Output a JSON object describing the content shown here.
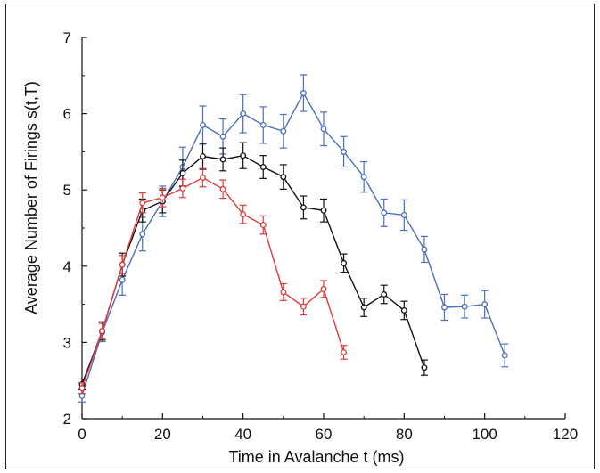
{
  "chart_data": {
    "type": "line",
    "title": "",
    "xlabel": "Time in Avalanche t (ms)",
    "ylabel": "Average Number of Firings s(t,T)",
    "xlim": [
      0,
      120
    ],
    "ylim": [
      2,
      7
    ],
    "xticks": [
      0,
      20,
      40,
      60,
      80,
      100,
      120
    ],
    "yticks": [
      2,
      3,
      4,
      5,
      6,
      7
    ],
    "grid": false,
    "legend": "none",
    "series": [
      {
        "color": "#4a6fbf",
        "marker": "open-circle",
        "points": [
          {
            "x": 0,
            "y": 2.3,
            "err": 0.08
          },
          {
            "x": 5,
            "y": 3.13,
            "err": 0.12
          },
          {
            "x": 10,
            "y": 3.82,
            "err": 0.2
          },
          {
            "x": 15,
            "y": 4.42,
            "err": 0.22
          },
          {
            "x": 20,
            "y": 4.85,
            "err": 0.2
          },
          {
            "x": 25,
            "y": 5.3,
            "err": 0.26
          },
          {
            "x": 30,
            "y": 5.85,
            "err": 0.25
          },
          {
            "x": 35,
            "y": 5.7,
            "err": 0.23
          },
          {
            "x": 40,
            "y": 6.0,
            "err": 0.25
          },
          {
            "x": 45,
            "y": 5.85,
            "err": 0.24
          },
          {
            "x": 50,
            "y": 5.77,
            "err": 0.22
          },
          {
            "x": 55,
            "y": 6.27,
            "err": 0.24
          },
          {
            "x": 60,
            "y": 5.8,
            "err": 0.22
          },
          {
            "x": 65,
            "y": 5.5,
            "err": 0.2
          },
          {
            "x": 70,
            "y": 5.17,
            "err": 0.2
          },
          {
            "x": 75,
            "y": 4.7,
            "err": 0.18
          },
          {
            "x": 80,
            "y": 4.67,
            "err": 0.2
          },
          {
            "x": 85,
            "y": 4.22,
            "err": 0.17
          },
          {
            "x": 90,
            "y": 3.46,
            "err": 0.17
          },
          {
            "x": 95,
            "y": 3.47,
            "err": 0.15
          },
          {
            "x": 100,
            "y": 3.5,
            "err": 0.18
          },
          {
            "x": 105,
            "y": 2.83,
            "err": 0.15
          }
        ]
      },
      {
        "color": "#111111",
        "marker": "open-circle",
        "points": [
          {
            "x": 0,
            "y": 2.45,
            "err": 0.07
          },
          {
            "x": 5,
            "y": 3.15,
            "err": 0.12
          },
          {
            "x": 10,
            "y": 4.02,
            "err": 0.15
          },
          {
            "x": 15,
            "y": 4.73,
            "err": 0.15
          },
          {
            "x": 20,
            "y": 4.85,
            "err": 0.15
          },
          {
            "x": 25,
            "y": 5.22,
            "err": 0.17
          },
          {
            "x": 30,
            "y": 5.44,
            "err": 0.17
          },
          {
            "x": 35,
            "y": 5.4,
            "err": 0.15
          },
          {
            "x": 40,
            "y": 5.45,
            "err": 0.17
          },
          {
            "x": 45,
            "y": 5.3,
            "err": 0.15
          },
          {
            "x": 50,
            "y": 5.17,
            "err": 0.16
          },
          {
            "x": 55,
            "y": 4.77,
            "err": 0.15
          },
          {
            "x": 60,
            "y": 4.73,
            "err": 0.15
          },
          {
            "x": 65,
            "y": 4.04,
            "err": 0.12
          },
          {
            "x": 70,
            "y": 3.46,
            "err": 0.12
          },
          {
            "x": 75,
            "y": 3.63,
            "err": 0.12
          },
          {
            "x": 80,
            "y": 3.42,
            "err": 0.12
          },
          {
            "x": 85,
            "y": 2.67,
            "err": 0.1
          }
        ]
      },
      {
        "color": "#e03a3a",
        "marker": "open-circle",
        "points": [
          {
            "x": 0,
            "y": 2.4,
            "err": 0.07
          },
          {
            "x": 5,
            "y": 3.15,
            "err": 0.1
          },
          {
            "x": 10,
            "y": 4.02,
            "err": 0.12
          },
          {
            "x": 15,
            "y": 4.83,
            "err": 0.13
          },
          {
            "x": 20,
            "y": 4.9,
            "err": 0.12
          },
          {
            "x": 25,
            "y": 5.02,
            "err": 0.12
          },
          {
            "x": 30,
            "y": 5.16,
            "err": 0.12
          },
          {
            "x": 35,
            "y": 5.01,
            "err": 0.12
          },
          {
            "x": 40,
            "y": 4.68,
            "err": 0.12
          },
          {
            "x": 45,
            "y": 4.54,
            "err": 0.12
          },
          {
            "x": 50,
            "y": 3.66,
            "err": 0.11
          },
          {
            "x": 55,
            "y": 3.47,
            "err": 0.11
          },
          {
            "x": 60,
            "y": 3.7,
            "err": 0.11
          },
          {
            "x": 65,
            "y": 2.87,
            "err": 0.09
          }
        ]
      }
    ]
  }
}
